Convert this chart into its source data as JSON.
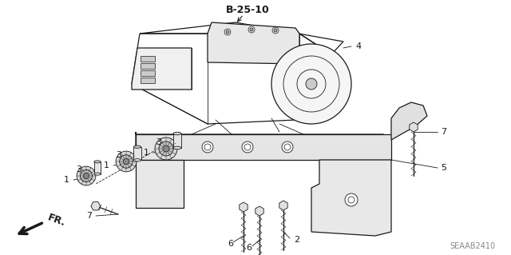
{
  "title": "B-25-10",
  "watermark": "SEAAB2410",
  "bg": "#ffffff",
  "lc": "#1a1a1a",
  "gray": "#888888",
  "figsize": [
    6.4,
    3.19
  ],
  "dpi": 100,
  "label_fs": 8,
  "title_fs": 9,
  "wm_fs": 7,
  "fr_fs": 9
}
